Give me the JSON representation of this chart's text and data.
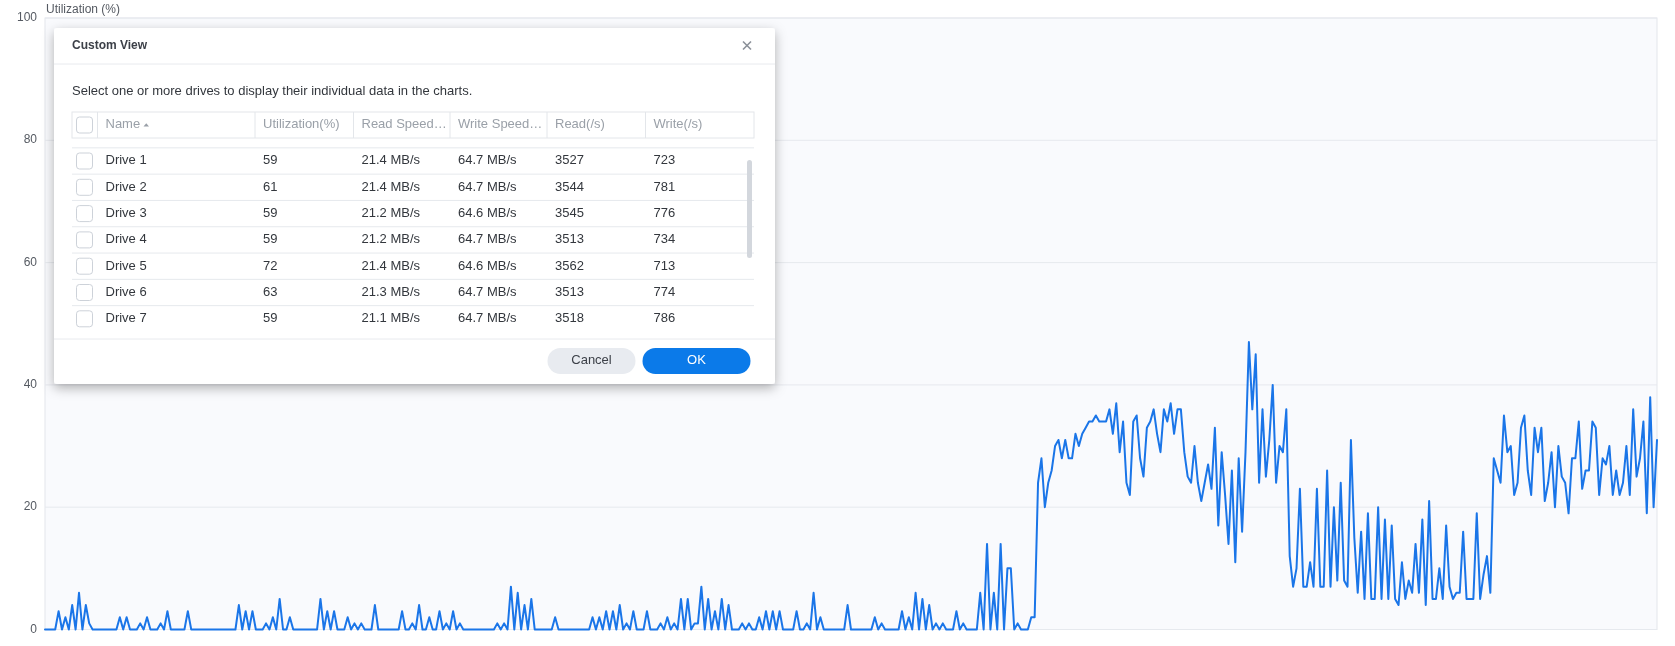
{
  "chart_data": [
    {
      "type": "line",
      "ylabel": "Utilization (%)",
      "categories": [
        null,
        null,
        null,
        null,
        null,
        null,
        null,
        null,
        null,
        null,
        null,
        null,
        null,
        null,
        null,
        null,
        null,
        null,
        null,
        null,
        null,
        null,
        null,
        null,
        null,
        null,
        null,
        null,
        null,
        null,
        null,
        null,
        null,
        null,
        null,
        null,
        null,
        null,
        null,
        null,
        null,
        null,
        null,
        null,
        null,
        null,
        null,
        null,
        null,
        null,
        null,
        null,
        null,
        null,
        null,
        null,
        null,
        null,
        null,
        null,
        null,
        null,
        null,
        null,
        null,
        null,
        null,
        null,
        null,
        null,
        null,
        null,
        null,
        null,
        null,
        null,
        null,
        null,
        null,
        null,
        null,
        null,
        null,
        null,
        null,
        null,
        null,
        null,
        null,
        null,
        null,
        null,
        null,
        null,
        null,
        null,
        null,
        null,
        null,
        null,
        null,
        null,
        null,
        null,
        null,
        null,
        null,
        null,
        null,
        null,
        null,
        null,
        null,
        null,
        null,
        null,
        null,
        null,
        null,
        null,
        null,
        null,
        null,
        null,
        null,
        null,
        null,
        null,
        null,
        null,
        null,
        null,
        null,
        null,
        null,
        null,
        null,
        null,
        null,
        null,
        null,
        null,
        null,
        null,
        null,
        null,
        null,
        null,
        null,
        null,
        null,
        null,
        null,
        null,
        null,
        null,
        null,
        null,
        null,
        null,
        null,
        null,
        null,
        null,
        null,
        null,
        null,
        null,
        null,
        null,
        null,
        null,
        null,
        null,
        null,
        null,
        null,
        null,
        null,
        null,
        null,
        null,
        null,
        null,
        null,
        null,
        null,
        null,
        null,
        null,
        null,
        null,
        null,
        null,
        null,
        null,
        null,
        null,
        null,
        null,
        null,
        null,
        null,
        null,
        null,
        null,
        null,
        null,
        null,
        null,
        null,
        null,
        null,
        null,
        null,
        null,
        null,
        null,
        null,
        null,
        null,
        null,
        null,
        null,
        null,
        null,
        null,
        null,
        null,
        null,
        null,
        null,
        null,
        null,
        null,
        null,
        null,
        null,
        null,
        null,
        null,
        null,
        null,
        null,
        null,
        null,
        null,
        null,
        null,
        null,
        null,
        null,
        null,
        null,
        null,
        null,
        null,
        null,
        null,
        null,
        null,
        null,
        null,
        null,
        null,
        null,
        null,
        null,
        null,
        null,
        null,
        null,
        null,
        null,
        null,
        null,
        null,
        null,
        null,
        null,
        null,
        null,
        null,
        null,
        null,
        null,
        null,
        null,
        null,
        null,
        null,
        null,
        null,
        null,
        null,
        null,
        null,
        null,
        null,
        null,
        null,
        null,
        null,
        null,
        null,
        null,
        null,
        null,
        null,
        null,
        null,
        null,
        null,
        null,
        null,
        null,
        null,
        null,
        null,
        null,
        null,
        null,
        null,
        null,
        null,
        null,
        null,
        null,
        null,
        null,
        null,
        null,
        null,
        null,
        null,
        null,
        null,
        null,
        null,
        null,
        null,
        null,
        null,
        null,
        null,
        null,
        null,
        null,
        null,
        null,
        null,
        null,
        null,
        null,
        null,
        null,
        null,
        null,
        null,
        null,
        null,
        null,
        null,
        null,
        null,
        null,
        null,
        null,
        null,
        null,
        null,
        null,
        null,
        null,
        null,
        null,
        null,
        null,
        null,
        null,
        null,
        null,
        null,
        null,
        null,
        null,
        null,
        null,
        null,
        null,
        null,
        null,
        null,
        null,
        null,
        null,
        null,
        null,
        null,
        null,
        null,
        null,
        null,
        null,
        null,
        null,
        null,
        null,
        null,
        null,
        null,
        null,
        null,
        null,
        null,
        null,
        null,
        null,
        null,
        null,
        null,
        null,
        null,
        null,
        null,
        null,
        null,
        null,
        null,
        null,
        null,
        null,
        null,
        null,
        null,
        null,
        null,
        null,
        null,
        null,
        null,
        null,
        null,
        null,
        null,
        null,
        null,
        null,
        null,
        null,
        null,
        null,
        null,
        null,
        null,
        null,
        null,
        null,
        null,
        null,
        null,
        null,
        null,
        null,
        null,
        null,
        null,
        null,
        null,
        null,
        null,
        null,
        null,
        null,
        null
      ],
      "series": [
        {
          "color": "#1a75e8",
          "values": [
            0,
            0,
            0,
            0,
            3,
            0,
            2,
            0,
            4,
            0,
            6,
            0,
            4,
            1,
            0,
            0,
            0,
            0,
            0,
            0,
            0,
            0,
            2,
            0,
            2,
            0,
            0,
            0,
            1,
            0,
            2,
            0,
            0,
            0,
            1,
            0,
            3,
            0,
            0,
            0,
            0,
            0,
            3,
            0,
            0,
            0,
            0,
            0,
            0,
            0,
            0,
            0,
            0,
            0,
            0,
            0,
            0,
            4,
            0,
            3,
            0,
            3,
            0,
            0,
            0,
            1,
            0,
            2,
            0,
            5,
            0,
            0,
            2,
            0,
            0,
            0,
            0,
            0,
            0,
            0,
            0,
            5,
            0,
            3,
            0,
            3,
            0,
            0,
            0,
            2,
            0,
            1,
            0,
            1,
            0,
            0,
            0,
            4,
            0,
            0,
            0,
            0,
            0,
            0,
            0,
            3,
            0,
            0,
            1,
            0,
            4,
            0,
            0,
            2,
            0,
            0,
            3,
            0,
            1,
            0,
            3,
            0,
            1,
            0,
            0,
            0,
            0,
            0,
            0,
            0,
            0,
            0,
            0,
            1,
            0,
            1,
            0,
            7,
            0,
            6,
            0,
            4,
            0,
            5,
            0,
            0,
            0,
            0,
            0,
            0,
            2,
            0,
            0,
            0,
            0,
            0,
            0,
            0,
            0,
            0,
            0,
            2,
            0,
            2,
            0,
            3,
            0,
            3,
            0,
            4,
            0,
            1,
            0,
            3,
            0,
            0,
            0,
            3,
            0,
            0,
            0,
            1,
            0,
            2,
            0,
            1,
            0,
            5,
            0,
            5,
            0,
            1,
            1,
            7,
            0,
            5,
            0,
            3,
            0,
            5,
            0,
            4,
            0,
            0,
            0,
            1,
            0,
            1,
            0,
            0,
            2,
            0,
            3,
            0,
            3,
            0,
            3,
            0,
            0,
            0,
            0,
            3,
            0,
            0,
            1,
            0,
            6,
            0,
            2,
            0,
            0,
            0,
            0,
            0,
            0,
            0,
            4,
            0,
            0,
            0,
            0,
            0,
            0,
            0,
            2,
            0,
            1,
            0,
            0,
            0,
            0,
            0,
            3,
            0,
            2,
            0,
            6,
            0,
            5,
            0,
            4,
            0,
            1,
            0,
            1,
            0,
            0,
            0,
            3,
            0,
            1,
            0,
            0,
            0,
            0,
            6,
            0,
            14,
            0,
            6,
            0,
            14,
            0,
            10,
            10,
            0,
            1,
            0,
            0,
            0,
            2,
            2,
            24,
            28,
            20,
            24,
            26,
            30,
            31,
            28,
            31,
            28,
            28,
            32,
            30,
            32,
            33,
            34,
            34,
            35,
            34,
            34,
            34,
            36,
            32,
            37,
            29,
            34,
            24,
            22,
            34,
            35,
            28,
            25,
            33,
            34,
            36,
            32,
            29,
            36,
            34,
            37,
            32,
            36,
            36,
            29,
            25,
            24,
            30,
            24,
            21,
            24,
            27,
            23,
            33,
            17,
            29,
            22,
            14,
            26,
            11,
            28,
            16,
            29,
            47,
            36,
            45,
            24,
            36,
            25,
            31,
            40,
            24,
            30,
            29,
            36,
            12,
            7,
            10,
            23,
            7,
            7,
            11,
            7,
            23,
            7,
            7,
            26,
            7,
            20,
            8,
            24,
            8,
            7,
            31,
            15,
            6,
            16,
            5,
            19,
            5,
            5,
            20,
            5,
            18,
            5,
            17,
            5,
            4,
            11,
            5,
            8,
            6,
            14,
            6,
            18,
            4,
            21,
            5,
            5,
            10,
            5,
            17,
            7,
            5,
            6,
            6,
            16,
            5,
            5,
            5,
            19,
            5,
            9,
            12,
            6,
            28,
            26,
            24,
            35,
            29,
            30,
            22,
            24,
            33,
            35,
            26,
            22,
            33,
            29,
            33,
            21,
            24,
            29,
            20,
            30,
            25,
            24,
            19,
            28,
            28,
            34,
            23,
            26,
            26,
            34,
            33,
            22,
            28,
            27,
            30,
            22,
            26,
            22,
            24,
            30,
            22,
            36,
            25,
            28,
            34,
            19,
            38,
            20,
            31
          ]
        }
      ],
      "ylim": [
        0,
        100
      ],
      "yticks": [
        0,
        20,
        40,
        60,
        80,
        100
      ],
      "grid": "y",
      "tick_labels": "y"
    },
    {
      "type": "other",
      "title": "Custom View",
      "subtitle": "Select one or more drives to display their individual data in the charts.",
      "categories": [
        "Name",
        "Utilization(%)",
        "Read Speed…",
        "Write Speed…",
        "Read(/s)",
        "Write(/s)"
      ],
      "cell_labels": [
        [
          "Drive 1",
          "59",
          "21.4 MB/s",
          "64.7 MB/s",
          "3527",
          "723"
        ],
        [
          "Drive 2",
          "61",
          "21.4 MB/s",
          "64.7 MB/s",
          "3544",
          "781"
        ],
        [
          "Drive 3",
          "59",
          "21.2 MB/s",
          "64.6 MB/s",
          "3545",
          "776"
        ],
        [
          "Drive 4",
          "59",
          "21.2 MB/s",
          "64.7 MB/s",
          "3513",
          "734"
        ],
        [
          "Drive 5",
          "72",
          "21.4 MB/s",
          "64.6 MB/s",
          "3562",
          "713"
        ],
        [
          "Drive 6",
          "63",
          "21.3 MB/s",
          "64.7 MB/s",
          "3513",
          "774"
        ],
        [
          "Drive 7",
          "59",
          "21.1 MB/s",
          "64.7 MB/s",
          "3518",
          "786"
        ]
      ],
      "annotations": [
        "Cancel",
        "OK"
      ]
    }
  ]
}
